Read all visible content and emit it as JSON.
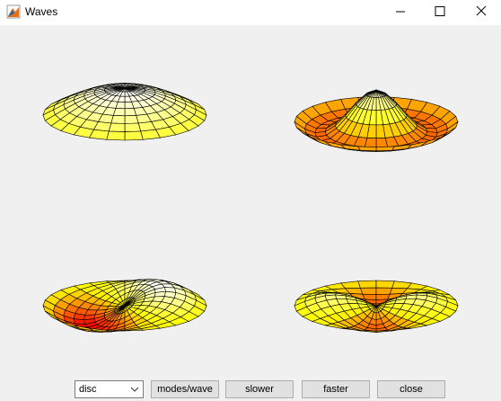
{
  "window": {
    "title": "Waves"
  },
  "controls": {
    "dropdown": "disc",
    "buttons": [
      "modes/wave",
      "slower",
      "faster",
      "close"
    ]
  }
}
